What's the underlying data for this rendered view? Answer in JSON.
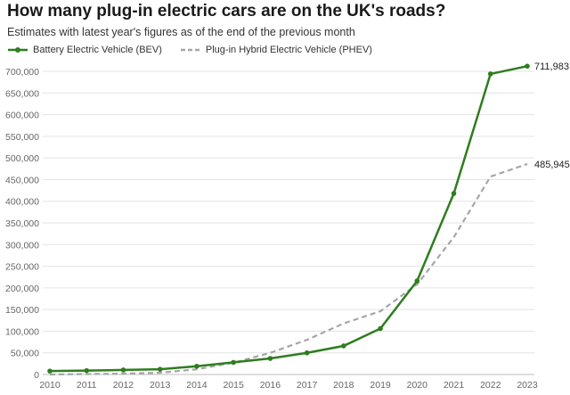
{
  "title": "How many plug-in electric cars are on the UK's roads?",
  "subtitle": "Estimates with latest year's figures as of the end of the previous month",
  "colors": {
    "bev": "#2e7d1f",
    "phev": "#a6a6a6",
    "grid": "#e3e3e3",
    "axis": "#bbbbbb"
  },
  "chart_data": {
    "type": "line",
    "title": "How many plug-in electric cars are on the UK's roads?",
    "subtitle": "Estimates with latest year's figures as of the end of the previous month",
    "x": [
      "2010",
      "2011",
      "2012",
      "2013",
      "2014",
      "2015",
      "2016",
      "2017",
      "2018",
      "2019",
      "2020",
      "2021",
      "2022",
      "2023"
    ],
    "ylim": [
      0,
      700000
    ],
    "y_ticks": [
      "0",
      "50,000",
      "100,000",
      "150,000",
      "200,000",
      "250,000",
      "300,000",
      "350,000",
      "400,000",
      "450,000",
      "500,000",
      "550,000",
      "600,000",
      "650,000",
      "700,000"
    ],
    "grid": true,
    "legend_position": "top-left",
    "series": [
      {
        "name": "Battery Electric Vehicle (BEV)",
        "style": "solid-with-markers",
        "values": [
          8000,
          9000,
          10500,
          12000,
          19000,
          28000,
          37000,
          50000,
          66000,
          106000,
          216000,
          418000,
          694000,
          711983
        ],
        "end_label": "711,983"
      },
      {
        "name": "Plug-in Hybrid Electric Vehicle (PHEV)",
        "style": "dashed",
        "values": [
          0,
          1000,
          2000,
          4000,
          12000,
          27000,
          50000,
          80000,
          118000,
          146000,
          208000,
          317000,
          457000,
          485945
        ],
        "end_label": "485,945"
      }
    ]
  }
}
